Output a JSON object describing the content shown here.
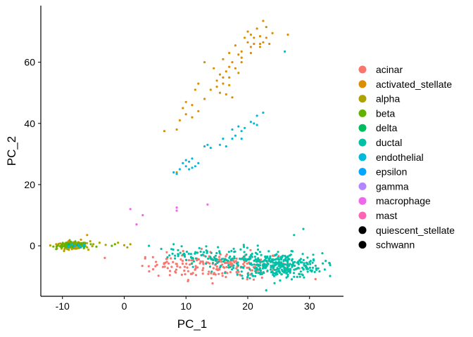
{
  "chart_data": {
    "type": "scatter",
    "xlabel": "PC_1",
    "ylabel": "PC_2",
    "xlim": [
      -13.5,
      35.5
    ],
    "ylim": [
      -16.5,
      78.5
    ],
    "xticks": [
      -10,
      0,
      10,
      20,
      30
    ],
    "yticks": [
      0,
      20,
      40,
      60
    ],
    "grid": false,
    "legend_position": "right",
    "series": [
      {
        "name": "acinar",
        "color": "#F8766D",
        "clusters": [
          {
            "cx": 16,
            "cy": -6.5,
            "sx": 5.5,
            "sy": 2.2,
            "n": 200
          },
          {
            "cx": 7,
            "cy": -5.5,
            "sx": 2,
            "sy": 1.5,
            "n": 20
          }
        ]
      },
      {
        "name": "activated_stellate",
        "color": "#DB8E00",
        "points": [
          [
            22.5,
            73.5
          ],
          [
            21.5,
            71
          ],
          [
            23,
            71.5
          ],
          [
            20.5,
            69
          ],
          [
            21,
            68
          ],
          [
            22,
            68.5
          ],
          [
            23,
            68
          ],
          [
            19.5,
            68
          ],
          [
            20,
            66.5
          ],
          [
            21,
            66
          ],
          [
            22,
            66
          ],
          [
            22.5,
            66.5
          ],
          [
            18,
            65.5
          ],
          [
            19,
            63.5
          ],
          [
            20.5,
            65
          ],
          [
            17,
            63
          ],
          [
            18.5,
            62.5
          ],
          [
            19,
            61.5
          ],
          [
            17.5,
            60
          ],
          [
            16,
            61
          ],
          [
            17,
            58.5
          ],
          [
            18,
            58
          ],
          [
            16.5,
            57
          ],
          [
            15.5,
            56
          ],
          [
            16,
            55
          ],
          [
            17,
            55
          ],
          [
            18.5,
            56.5
          ],
          [
            15,
            54
          ],
          [
            16,
            53
          ],
          [
            17,
            52.5
          ],
          [
            14,
            51
          ],
          [
            15.5,
            50
          ],
          [
            16.5,
            49.5
          ],
          [
            17.5,
            48.5
          ],
          [
            13,
            60
          ],
          [
            12,
            53
          ],
          [
            11.5,
            51
          ],
          [
            14.5,
            58
          ],
          [
            19,
            60
          ],
          [
            20.5,
            63
          ],
          [
            24,
            69.5
          ],
          [
            26.5,
            69
          ],
          [
            23.5,
            66
          ],
          [
            10,
            47
          ],
          [
            9.5,
            45
          ],
          [
            11,
            46
          ],
          [
            10,
            43
          ],
          [
            9,
            41
          ],
          [
            11,
            42
          ],
          [
            8.5,
            38
          ],
          [
            6.5,
            37.5
          ],
          [
            8.5,
            24
          ],
          [
            12,
            44
          ],
          [
            13,
            48
          ],
          [
            15,
            52
          ],
          [
            20,
            70
          ],
          [
            22,
            65
          ],
          [
            -7,
            2
          ],
          [
            -6,
            3.5
          ],
          [
            -9,
            1.5
          ],
          [
            -11,
            0.5
          ],
          [
            -8,
            -0.5
          ]
        ]
      },
      {
        "name": "alpha",
        "color": "#AEA200",
        "clusters": [
          {
            "cx": -8.5,
            "cy": 0,
            "sx": 1.2,
            "sy": 0.5,
            "n": 110
          }
        ],
        "points": [
          [
            -5,
            0.5
          ],
          [
            -4,
            1
          ],
          [
            -3,
            0.3
          ],
          [
            -1,
            1
          ],
          [
            0,
            0.2
          ],
          [
            0.5,
            -0.5
          ],
          [
            1,
            0.5
          ],
          [
            -5.5,
            1.5
          ],
          [
            -6,
            -0.5
          ]
        ]
      },
      {
        "name": "beta",
        "color": "#64B200",
        "clusters": [
          {
            "cx": -8.3,
            "cy": 0.2,
            "sx": 1.2,
            "sy": 0.5,
            "n": 130
          }
        ],
        "points": [
          [
            -2,
            0
          ],
          [
            -1.5,
            0.5
          ],
          [
            -4.5,
            -0.3
          ]
        ]
      },
      {
        "name": "delta",
        "color": "#00BD5C",
        "points": [
          [
            -9,
            0.5
          ],
          [
            -7.5,
            0.2
          ],
          [
            -6.5,
            -0.3
          ]
        ]
      },
      {
        "name": "ductal",
        "color": "#00C1A7",
        "clusters": [
          {
            "cx": 25,
            "cy": -6.5,
            "sx": 3.5,
            "sy": 2,
            "n": 320
          },
          {
            "cx": 16,
            "cy": -4,
            "sx": 4,
            "sy": 2,
            "n": 110
          },
          {
            "cx": 10,
            "cy": -3,
            "sx": 1.5,
            "sy": 1,
            "n": 15
          }
        ],
        "points": [
          [
            29,
            5.5
          ],
          [
            27.5,
            3.5
          ],
          [
            6,
            -1
          ],
          [
            4,
            0
          ],
          [
            8,
            0.5
          ]
        ]
      },
      {
        "name": "endothelial",
        "color": "#00BADE",
        "points": [
          [
            26,
            63.5
          ],
          [
            22.5,
            43.5
          ],
          [
            21.5,
            42.5
          ],
          [
            20.5,
            40.5
          ],
          [
            21,
            40
          ],
          [
            21.5,
            39.5
          ],
          [
            19.5,
            38.5
          ],
          [
            18.5,
            39
          ],
          [
            19,
            37.5
          ],
          [
            17.5,
            38
          ],
          [
            18,
            36
          ],
          [
            16,
            35
          ],
          [
            17.5,
            35
          ],
          [
            15.5,
            33
          ],
          [
            19,
            35
          ],
          [
            13.5,
            33
          ],
          [
            14,
            32
          ],
          [
            16.5,
            32.5
          ],
          [
            13,
            32.5
          ],
          [
            10,
            28
          ],
          [
            10.5,
            27.5
          ],
          [
            11,
            28.5
          ],
          [
            9.5,
            27
          ],
          [
            10,
            26
          ],
          [
            11.5,
            26
          ],
          [
            12,
            27
          ],
          [
            9,
            25
          ],
          [
            10.5,
            25
          ],
          [
            8,
            24
          ],
          [
            8.5,
            23.5
          ],
          [
            11,
            25.5
          ],
          [
            -8,
            0
          ],
          [
            -7,
            -0.5
          ],
          [
            -8.5,
            0.5
          ],
          [
            -6.5,
            0.2
          ],
          [
            -9,
            -0.3
          ],
          [
            -7.5,
            0.4
          ],
          [
            -7.2,
            -0.2
          ]
        ]
      },
      {
        "name": "epsilon",
        "color": "#00A6FF",
        "points": [
          [
            -7.5,
            0.3
          ],
          [
            -8.2,
            -0.2
          ]
        ]
      },
      {
        "name": "gamma",
        "color": "#B385FF",
        "points": []
      },
      {
        "name": "macrophage",
        "color": "#EF67EB",
        "points": [
          [
            8.5,
            12.5
          ],
          [
            2,
            7
          ],
          [
            3,
            10
          ],
          [
            1,
            12
          ],
          [
            13.5,
            13.5
          ],
          [
            8.5,
            11.5
          ]
        ]
      },
      {
        "name": "mast",
        "color": "#FF63B6",
        "points": []
      },
      {
        "name": "quiescent_stellate",
        "color": "#000000",
        "points": []
      },
      {
        "name": "schwann",
        "color": "#000000",
        "points": []
      }
    ]
  }
}
